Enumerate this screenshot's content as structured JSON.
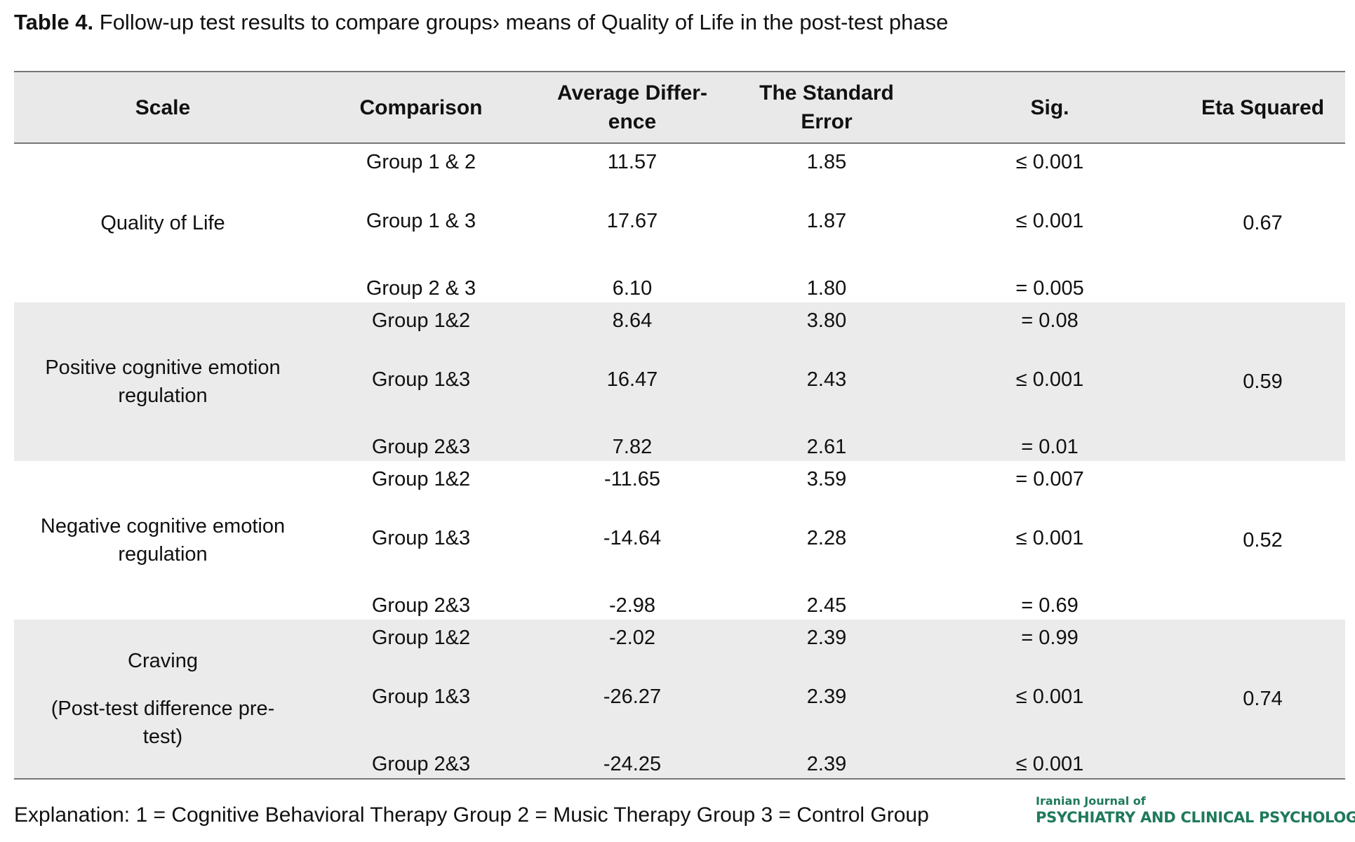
{
  "caption": {
    "label": "Table 4.",
    "text": " Follow-up test results to compare groups› means of Quality of Life in the post-test phase"
  },
  "table": {
    "headers": [
      "Scale",
      "Comparison",
      "Average Differ-\nence",
      "The Standard\nError",
      "Sig.",
      "Eta Squared"
    ],
    "blocks": [
      {
        "scale": [
          "Quality of Life"
        ],
        "eta": "0.67",
        "rows": [
          {
            "comparison": "Group 1 & 2",
            "diff": "11.57",
            "se": "1.85",
            "sig": "≤ 0.001"
          },
          {
            "comparison": "Group 1 & 3",
            "diff": "17.67",
            "se": "1.87",
            "sig": "≤ 0.001"
          },
          {
            "comparison": "Group 2 & 3",
            "diff": "6.10",
            "se": "1.80",
            "sig": "= 0.005"
          }
        ]
      },
      {
        "scale": [
          "Positive cognitive emotion",
          "regulation"
        ],
        "eta": "0.59",
        "rows": [
          {
            "comparison": "Group 1&2",
            "diff": "8.64",
            "se": "3.80",
            "sig": "= 0.08"
          },
          {
            "comparison": "Group 1&3",
            "diff": "16.47",
            "se": "2.43",
            "sig": "≤ 0.001"
          },
          {
            "comparison": "Group 2&3",
            "diff": "7.82",
            "se": "2.61",
            "sig": "= 0.01"
          }
        ]
      },
      {
        "scale": [
          "Negative cognitive emotion",
          "regulation"
        ],
        "eta": "0.52",
        "rows": [
          {
            "comparison": "Group 1&2",
            "diff": "-11.65",
            "se": "3.59",
            "sig": "= 0.007"
          },
          {
            "comparison": "Group 1&3",
            "diff": "-14.64",
            "se": "2.28",
            "sig": "≤ 0.001"
          },
          {
            "comparison": "Group 2&3",
            "diff": "-2.98",
            "se": "2.45",
            "sig": "= 0.69"
          }
        ]
      },
      {
        "scale": [
          "Craving",
          "",
          "(Post-test difference pre-",
          "test)"
        ],
        "eta": "0.74",
        "rows": [
          {
            "comparison": "Group 1&2",
            "diff": "-2.02",
            "se": "2.39",
            "sig": "= 0.99"
          },
          {
            "comparison": "Group 1&3",
            "diff": "-26.27",
            "se": "2.39",
            "sig": "≤ 0.001"
          },
          {
            "comparison": "Group 2&3",
            "diff": "-24.25",
            "se": "2.39",
            "sig": "≤ 0.001"
          }
        ]
      }
    ]
  },
  "footnote": "Explanation: 1 = Cognitive Behavioral Therapy Group 2 = Music Therapy Group 3 = Control Group",
  "logo": {
    "line1": "Iranian Journal of",
    "line2": "PSYCHIATRY AND CLINICAL PSYCHOLOGY"
  }
}
